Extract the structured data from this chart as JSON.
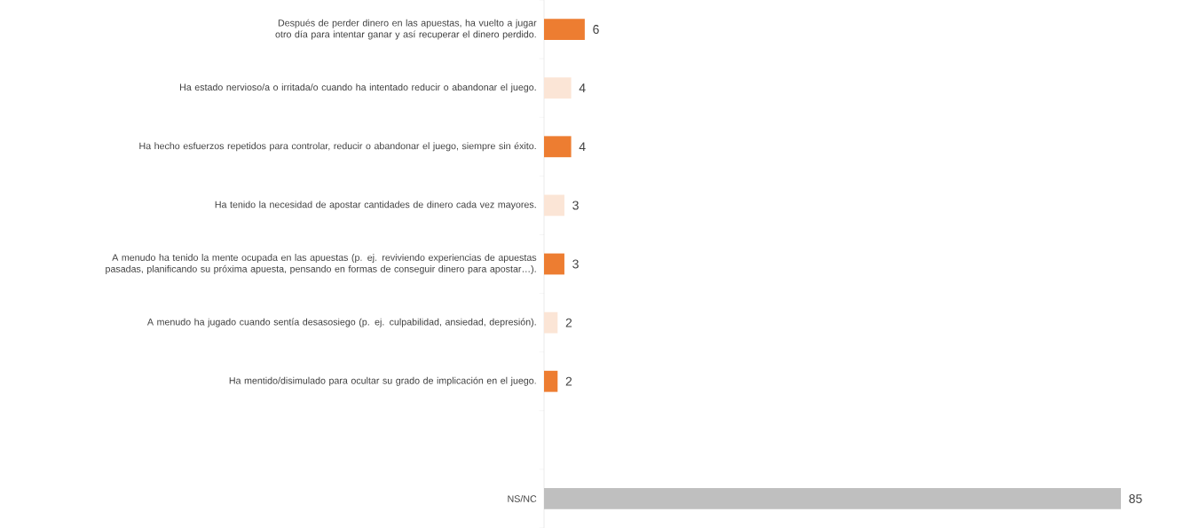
{
  "chart_data": {
    "type": "bar",
    "orientation": "horizontal",
    "categories": [
      "Después de perder dinero en las apuestas, ha vuelto a jugar otro día para intentar ganar y así recuperar el dinero perdido.",
      "Ha estado nervioso/a o irritada/o cuando ha intentado reducir o abandonar el juego.",
      "Ha hecho esfuerzos repetidos para controlar, reducir o abandonar el juego, siempre sin éxito.",
      "Ha tenido la necesidad de apostar cantidades de dinero cada vez mayores.",
      "A menudo ha tenido la mente ocupada en las apuestas (p. ej. reviviendo experiencias de apuestas pasadas, planificando su próxima apuesta, pensando en formas de conseguir dinero para apostar…).",
      "A menudo ha jugado cuando sentía desasosiego (p. ej. culpabilidad, ansiedad, depresión).",
      "Ha mentido/disimulado para ocultar su grado de implicación en el juego.",
      null,
      "NS/NC"
    ],
    "values": [
      6,
      4,
      4,
      3,
      3,
      2,
      2,
      null,
      85
    ],
    "colors": [
      "#ed7d31",
      "#fbe5d6",
      "#ed7d31",
      "#fbe5d6",
      "#ed7d31",
      "#fbe5d6",
      "#ed7d31",
      null,
      "#bfbfbf"
    ],
    "data_labels": true
  }
}
